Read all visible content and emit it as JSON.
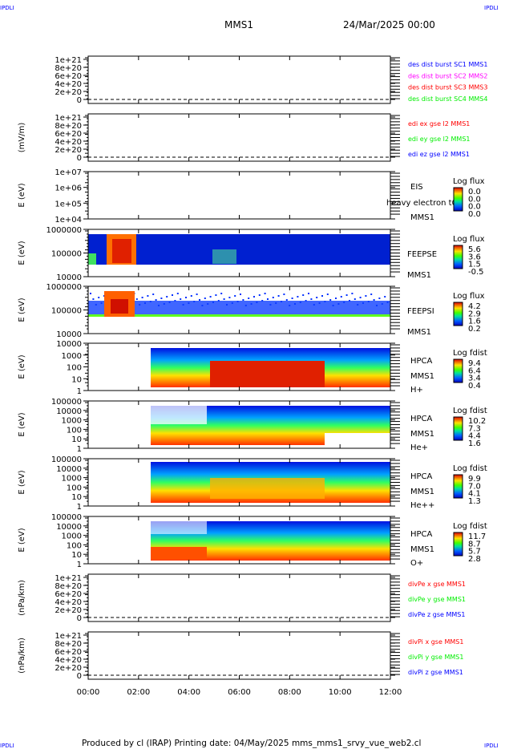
{
  "corner_labels": {
    "tl": "IPDLI",
    "tr": "IPDLI",
    "bl": "IPDLI",
    "br": "IPDLI"
  },
  "header": {
    "spacecraft": "MMS1",
    "date": "24/Mar/2025 00:00"
  },
  "footer": "Produced by cl (IRAP)   Printing date: 04/May/2025   mms_mms1_srvy_vue_web2.cl",
  "colors": {
    "blue": "#0000ff",
    "magenta": "#ff00ff",
    "red": "#ff0000",
    "green": "#00ee00"
  },
  "chart_data": {
    "type": "heatmap",
    "xlabel": "",
    "x_tick_labels": [
      "00:00",
      "02:00",
      "04:00",
      "06:00",
      "08:00",
      "10:00",
      "12:00"
    ],
    "xlim_hours": [
      0,
      12
    ],
    "panels": [
      {
        "kind": "line",
        "ylabel": "",
        "yticks": [
          "1e+21",
          "8e+20",
          "6e+20",
          "4e+20",
          "2e+20",
          "0"
        ],
        "ylim": [
          0,
          1e+21
        ],
        "legend": [
          {
            "text": "des dist burst SC1 MMS1",
            "color": "#0000ff"
          },
          {
            "text": "des dist burst SC2 MMS2",
            "color": "#ff00ff"
          },
          {
            "text": "des dist burst SC3 MMS3",
            "color": "#ff0000"
          },
          {
            "text": "des dist burst SC4 MMS4",
            "color": "#00ee00"
          }
        ]
      },
      {
        "kind": "line",
        "ylabel": "(mV/m)",
        "yticks": [
          "1e+21",
          "8e+20",
          "6e+20",
          "4e+20",
          "2e+20",
          "0"
        ],
        "ylim": [
          0,
          1e+21
        ],
        "legend": [
          {
            "text": "edi ex gse l2 MMS1",
            "color": "#ff0000"
          },
          {
            "text": "edi ey gse l2 MMS1",
            "color": "#00ee00"
          },
          {
            "text": "edi ez gse l2 MMS1",
            "color": "#0000ff"
          }
        ]
      },
      {
        "kind": "spec",
        "ylabel": "E (eV)",
        "yticks": [
          "1e+07",
          "1e+06",
          "1e+05",
          "1e+04"
        ],
        "instrument": [
          "EIS",
          "MMS1"
        ],
        "overlay": "heavy electron t0",
        "cbar_title": "Log flux",
        "cbar_ticks": [
          "0.0",
          "0.0",
          "0.0",
          "0.0"
        ]
      },
      {
        "kind": "spec",
        "ylabel": "E (eV)",
        "yticks": [
          "1000000",
          "100000",
          "10000"
        ],
        "instrument": [
          "FEEPSE",
          "MMS1"
        ],
        "cbar_title": "Log flux",
        "cbar_ticks": [
          "5.6",
          "3.6",
          "1.5",
          "-0.5"
        ]
      },
      {
        "kind": "spec",
        "ylabel": "E (eV)",
        "yticks": [
          "1000000",
          "100000",
          "10000"
        ],
        "instrument": [
          "FEEPSI",
          "MMS1"
        ],
        "cbar_title": "Log flux",
        "cbar_ticks": [
          "4.2",
          "2.9",
          "1.6",
          "0.2"
        ]
      },
      {
        "kind": "spec",
        "ylabel": "E (eV)",
        "yticks": [
          "10000",
          "1000",
          "100",
          "10",
          "1"
        ],
        "instrument": [
          "HPCA",
          "MMS1",
          "H+"
        ],
        "cbar_title": "Log fdist",
        "cbar_ticks": [
          "9.4",
          "6.4",
          "3.4",
          "0.4"
        ]
      },
      {
        "kind": "spec",
        "ylabel": "E (eV)",
        "yticks": [
          "100000",
          "10000",
          "1000",
          "100",
          "10",
          "1"
        ],
        "instrument": [
          "HPCA",
          "MMS1",
          "He+"
        ],
        "cbar_title": "Log fdist",
        "cbar_ticks": [
          "10.2",
          "7.3",
          "4.4",
          "1.6"
        ]
      },
      {
        "kind": "spec",
        "ylabel": "E (eV)",
        "yticks": [
          "100000",
          "10000",
          "1000",
          "100",
          "10",
          "1"
        ],
        "instrument": [
          "HPCA",
          "MMS1",
          "He++"
        ],
        "cbar_title": "Log fdist",
        "cbar_ticks": [
          "9.9",
          "7.0",
          "4.1",
          "1.3"
        ]
      },
      {
        "kind": "spec",
        "ylabel": "E (eV)",
        "yticks": [
          "100000",
          "10000",
          "1000",
          "100",
          "10",
          "1"
        ],
        "instrument": [
          "HPCA",
          "MMS1",
          "O+"
        ],
        "cbar_title": "Log fdist",
        "cbar_ticks": [
          "11.7",
          "8.7",
          "5.7",
          "2.8"
        ]
      },
      {
        "kind": "line",
        "ylabel": "(nPa/km)",
        "yticks": [
          "1e+21",
          "8e+20",
          "6e+20",
          "4e+20",
          "2e+20",
          "0"
        ],
        "ylim": [
          0,
          1e+21
        ],
        "legend": [
          {
            "text": "divPe x gse MMS1",
            "color": "#ff0000"
          },
          {
            "text": "divPe y gse MMS1",
            "color": "#00ee00"
          },
          {
            "text": "divPe z gse MMS1",
            "color": "#0000ff"
          }
        ]
      },
      {
        "kind": "line",
        "ylabel": "(nPa/km)",
        "yticks": [
          "1e+21",
          "8e+20",
          "6e+20",
          "4e+20",
          "2e+20",
          "0"
        ],
        "ylim": [
          0,
          1e+21
        ],
        "legend": [
          {
            "text": "divPi x gse MMS1",
            "color": "#ff0000"
          },
          {
            "text": "divPi y gse MMS1",
            "color": "#00ee00"
          },
          {
            "text": "divPi z gse MMS1",
            "color": "#0000ff"
          }
        ]
      }
    ]
  }
}
